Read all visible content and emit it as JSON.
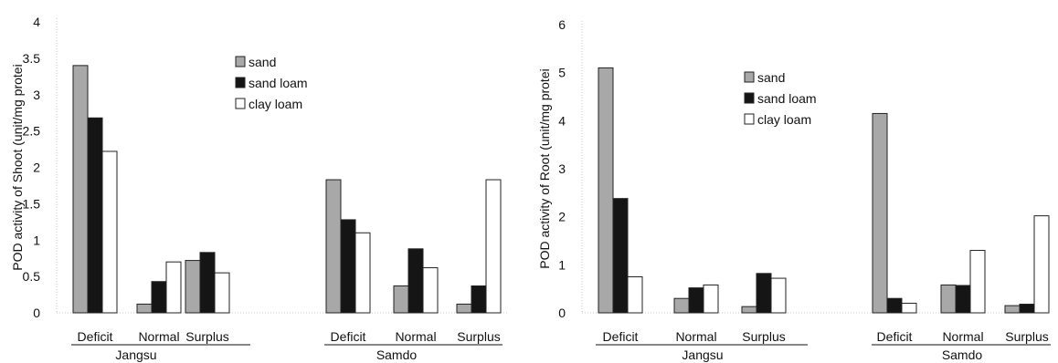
{
  "chart_data": [
    {
      "type": "bar",
      "ylabel": "POD activity of Shoot (unit/mg protei",
      "ylim": [
        0,
        4
      ],
      "yticks": [
        "0",
        "0.5",
        "1",
        "1.5",
        "2",
        "2.5",
        "3",
        "3.5",
        "4"
      ],
      "yvalues": [
        0,
        0.5,
        1,
        1.5,
        2,
        2.5,
        3,
        3.5,
        4
      ],
      "groups": [
        {
          "name": "Jangsu",
          "categories": [
            "Deficit",
            "Normal",
            "Surplus"
          ]
        },
        {
          "name": "Samdo",
          "categories": [
            "Deficit",
            "Normal",
            "Surplus"
          ]
        }
      ],
      "series": [
        {
          "name": "sand",
          "values": [
            3.4,
            0.12,
            0.72,
            1.83,
            0.37,
            0.12
          ]
        },
        {
          "name": "sand loam",
          "values": [
            2.68,
            0.43,
            0.83,
            1.28,
            0.88,
            0.37
          ]
        },
        {
          "name": "clay loam",
          "values": [
            2.22,
            0.7,
            0.55,
            1.1,
            0.62,
            1.83
          ]
        }
      ],
      "legend_position": "top-center"
    },
    {
      "type": "bar",
      "ylabel": "POD activity of Root (unit/mg protei",
      "ylim": [
        0,
        6
      ],
      "yticks": [
        "0",
        "1",
        "2",
        "3",
        "4",
        "5",
        "6"
      ],
      "yvalues": [
        0,
        1,
        2,
        3,
        4,
        5,
        6
      ],
      "groups": [
        {
          "name": "Jangsu",
          "categories": [
            "Deficit",
            "Normal",
            "Surplus"
          ]
        },
        {
          "name": "Samdo",
          "categories": [
            "Deficit",
            "Normal",
            "Surplus"
          ]
        }
      ],
      "series": [
        {
          "name": "sand",
          "values": [
            5.1,
            0.3,
            0.13,
            4.15,
            0.58,
            0.15
          ]
        },
        {
          "name": "sand loam",
          "values": [
            2.38,
            0.52,
            0.82,
            0.3,
            0.57,
            0.18
          ]
        },
        {
          "name": "clay loam",
          "values": [
            0.75,
            0.58,
            0.72,
            0.2,
            1.3,
            2.02
          ]
        }
      ],
      "legend_position": "top-center"
    }
  ],
  "colors": {
    "sand": "#a8a8a8",
    "sand loam": "#151515",
    "clay loam": "#ffffff",
    "outline": "#222222"
  }
}
